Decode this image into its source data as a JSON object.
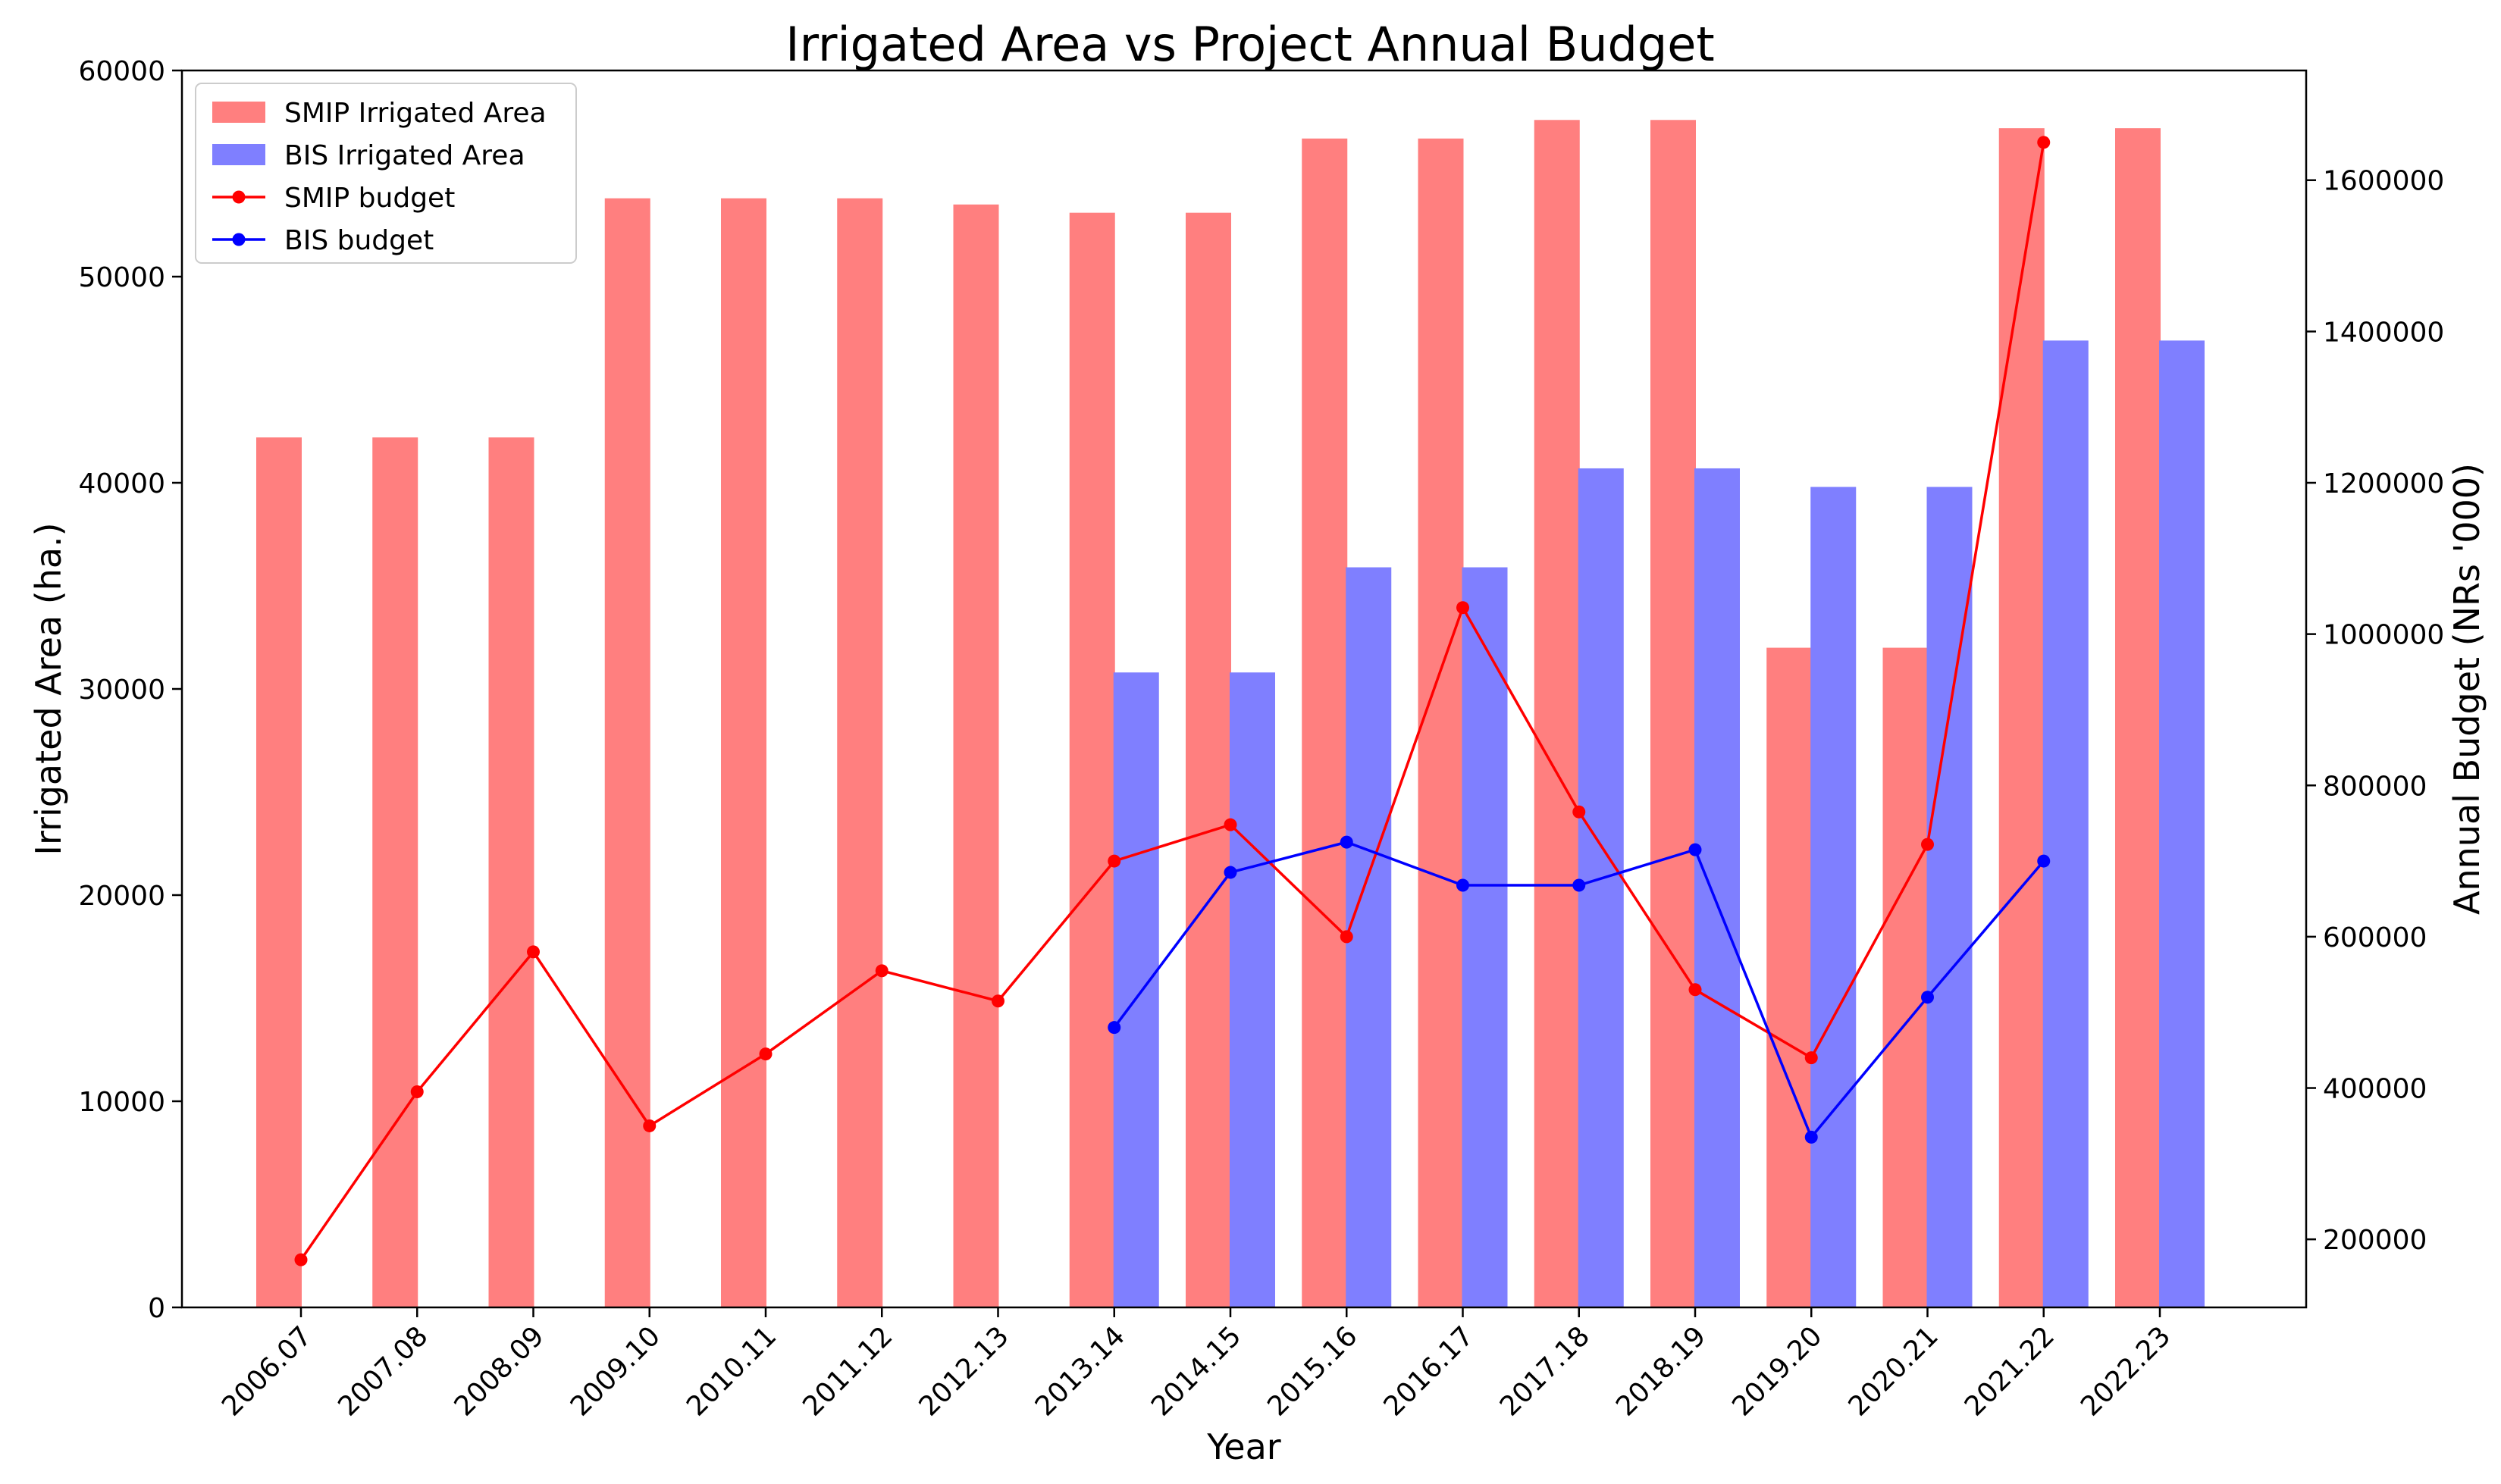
{
  "chart_data": {
    "type": "bar",
    "title": "Irrigated Area vs Project Annual Budget",
    "xlabel": "Year",
    "ylabel": "Irrigated Area (ha.)",
    "ylabel_right": "Annual Budget (NRs '000)",
    "categories": [
      "2006.07",
      "2007.08",
      "2008.09",
      "2009.10",
      "2010.11",
      "2011.12",
      "2012.13",
      "2013.14",
      "2014.15",
      "2015.16",
      "2016.17",
      "2017.18",
      "2018.19",
      "2019.20",
      "2020.21",
      "2021.22",
      "2022.23"
    ],
    "ylim": [
      0,
      60000
    ],
    "ylim_right": [
      110000,
      1745000
    ],
    "yticks": [
      "0",
      "10000",
      "20000",
      "30000",
      "40000",
      "50000",
      "60000"
    ],
    "yticks_right": [
      "200000",
      "400000",
      "600000",
      "800000",
      "1000000",
      "1200000",
      "1400000",
      "1600000"
    ],
    "grid": false,
    "legend_position": "top-left",
    "series": [
      {
        "name": "SMIP Irrigated Area",
        "kind": "bar",
        "axis": "left",
        "color": "#ff7f7f",
        "values": [
          42200,
          42200,
          42200,
          53800,
          53800,
          53800,
          53500,
          53100,
          53100,
          56700,
          56700,
          57600,
          57600,
          32000,
          32000,
          57200,
          57200
        ]
      },
      {
        "name": "BIS Irrigated Area",
        "kind": "bar",
        "axis": "left",
        "color": "#7f7fff",
        "values": [
          null,
          null,
          null,
          null,
          null,
          null,
          null,
          30800,
          30800,
          35900,
          35900,
          40700,
          40700,
          39800,
          39800,
          46900,
          46900
        ]
      },
      {
        "name": "SMIP budget",
        "kind": "line",
        "axis": "right",
        "color": "#ff0000",
        "values": [
          173000,
          395000,
          580000,
          350000,
          445000,
          555000,
          515000,
          700000,
          748000,
          600000,
          1035000,
          765000,
          530000,
          440000,
          722000,
          1650000,
          null
        ]
      },
      {
        "name": "BIS budget",
        "kind": "line",
        "axis": "right",
        "color": "#0000ff",
        "values": [
          null,
          null,
          null,
          null,
          null,
          null,
          null,
          480000,
          685000,
          725000,
          668000,
          668000,
          715000,
          335000,
          520000,
          700000,
          null
        ]
      }
    ]
  }
}
